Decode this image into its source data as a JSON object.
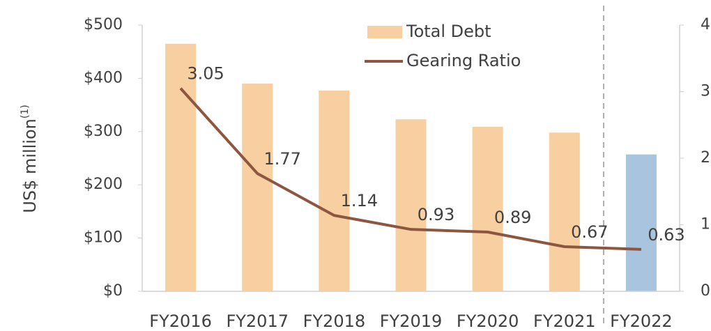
{
  "chart_data": {
    "type": "bar",
    "y_label": "US$ million",
    "y_label_note": "(1)",
    "categories": [
      "FY2016",
      "FY2017",
      "FY2018",
      "FY2019",
      "FY2020",
      "FY2021",
      "FY2022"
    ],
    "series": [
      {
        "name": "Total Debt",
        "type": "bar",
        "color": "#f8cfa0",
        "colors": [
          "#f8cfa0",
          "#f8cfa0",
          "#f8cfa0",
          "#f8cfa0",
          "#f8cfa0",
          "#f8cfa0",
          "#a9c4de"
        ],
        "values": [
          465,
          390,
          377,
          323,
          309,
          298,
          257
        ]
      },
      {
        "name": "Gearing Ratio",
        "type": "line",
        "axis": "y2",
        "color": "#8c5640",
        "values": [
          3.05,
          1.77,
          1.14,
          0.93,
          0.89,
          0.67,
          0.63
        ]
      }
    ],
    "ylim": [
      0,
      500
    ],
    "yticks": [
      {
        "value": 0,
        "label": "$0"
      },
      {
        "value": 100,
        "label": "$100"
      },
      {
        "value": 200,
        "label": "$200"
      },
      {
        "value": 300,
        "label": "$300"
      },
      {
        "value": 400,
        "label": "$400"
      },
      {
        "value": 500,
        "label": "$500"
      }
    ],
    "y2lim": [
      0,
      4
    ],
    "y2ticks": [
      0,
      1,
      2,
      3,
      4
    ],
    "grid": false,
    "legend": "top"
  }
}
